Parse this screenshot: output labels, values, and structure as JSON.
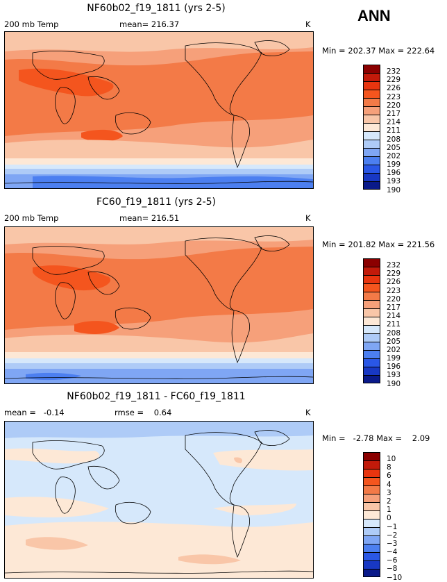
{
  "season": "ANN",
  "panels": [
    {
      "title": "NF60b02_f19_1811 (yrs 2-5)",
      "left_label": "200 mb Temp",
      "center_label": "mean= 216.37",
      "units": "K",
      "minmax": "Min = 202.37 Max = 222.64",
      "levels": [
        "232",
        "229",
        "226",
        "223",
        "220",
        "217",
        "214",
        "211",
        "208",
        "205",
        "202",
        "199",
        "196",
        "193",
        "190"
      ]
    },
    {
      "title": "FC60_f19_1811 (yrs 2-5)",
      "left_label": "200 mb Temp",
      "center_label": "mean= 216.51",
      "units": "K",
      "minmax": "Min = 201.82 Max = 221.56",
      "levels": [
        "232",
        "229",
        "226",
        "223",
        "220",
        "217",
        "214",
        "211",
        "208",
        "205",
        "202",
        "199",
        "196",
        "193",
        "190"
      ]
    },
    {
      "title": "NF60b02_f19_1811 - FC60_f19_1811",
      "left_label": "mean =   -0.14",
      "center_label": "rmse =    0.64",
      "units": "K",
      "minmax": "Min =   -2.78 Max =    2.09",
      "levels": [
        "10",
        "8",
        "6",
        "4",
        "3",
        "2",
        "1",
        "0",
        "−1",
        "−2",
        "−3",
        "−4",
        "−6",
        "−8",
        "−10"
      ]
    }
  ],
  "colors": {
    "scale": [
      "#8b0000",
      "#c21a0a",
      "#e8350f",
      "#f4551e",
      "#f37a47",
      "#f6a07a",
      "#f9c6a8",
      "#fde8d6",
      "#d6e8fb",
      "#aecbf7",
      "#7fa6f4",
      "#4c7ff0",
      "#2a57e6",
      "#1838c4",
      "#0a1a8a"
    ]
  }
}
